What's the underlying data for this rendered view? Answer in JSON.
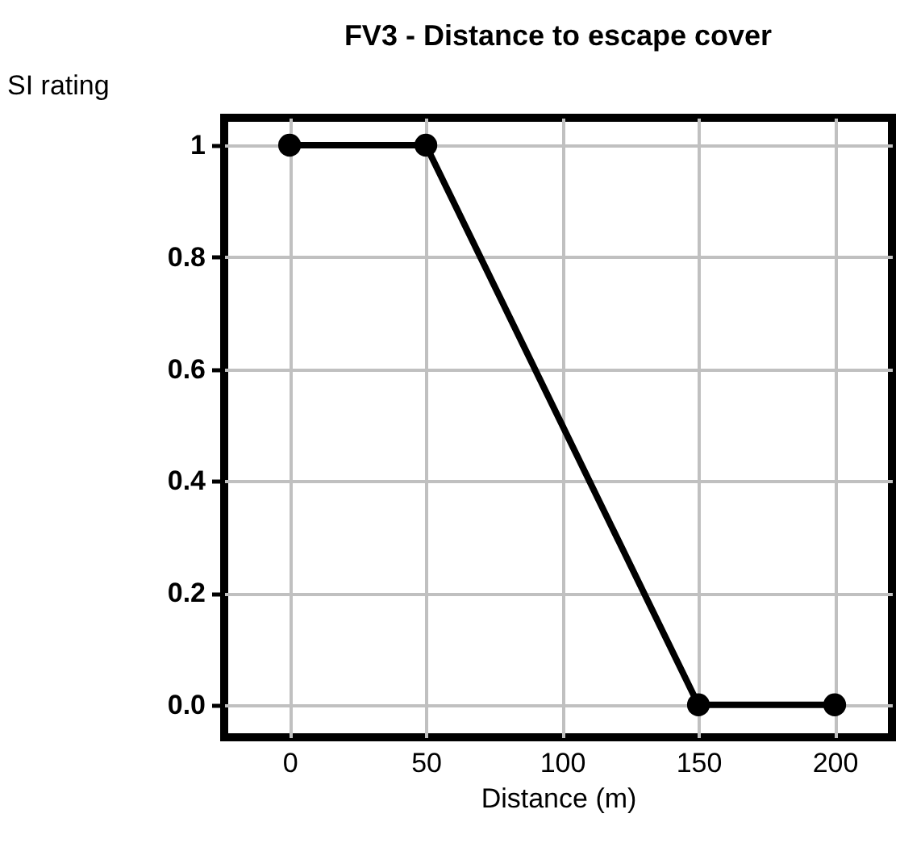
{
  "chart_data": {
    "type": "line",
    "title": "FV3 - Distance to escape cover",
    "xlabel": "Distance (m)",
    "ylabel": "SI rating",
    "x": [
      0,
      50,
      150,
      200
    ],
    "series": [
      {
        "color": "#000000",
        "values": [
          1,
          1,
          0,
          0
        ]
      }
    ],
    "xlim": [
      -24,
      221
    ],
    "xticks": [
      0,
      50,
      100,
      150,
      200
    ],
    "ylim": [
      -0.058,
      1.049
    ],
    "yticks": [
      {
        "value": 0,
        "label": "0.0"
      },
      0.2,
      0.4,
      0.6,
      0.8,
      1
    ],
    "grid": true,
    "marker": "circle",
    "line_style": "solid"
  }
}
